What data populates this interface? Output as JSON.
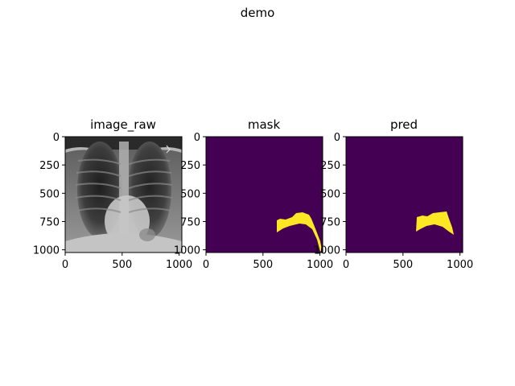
{
  "figure": {
    "suptitle": "demo"
  },
  "panels": [
    {
      "title": "image_raw",
      "kind": "xray",
      "xticks": [
        "0",
        "500",
        "1000"
      ],
      "yticks": [
        "0",
        "250",
        "500",
        "750",
        "1000"
      ]
    },
    {
      "title": "mask",
      "kind": "mask",
      "xticks": [
        "0",
        "500",
        "1000"
      ],
      "yticks": [
        "0",
        "250",
        "500",
        "750",
        "1000"
      ]
    },
    {
      "title": "pred",
      "kind": "pred",
      "xticks": [
        "0",
        "500",
        "1000"
      ],
      "yticks": [
        "0",
        "250",
        "500",
        "750",
        "1000"
      ]
    }
  ],
  "colors": {
    "background": "#440154",
    "foreground": "#fde725"
  }
}
